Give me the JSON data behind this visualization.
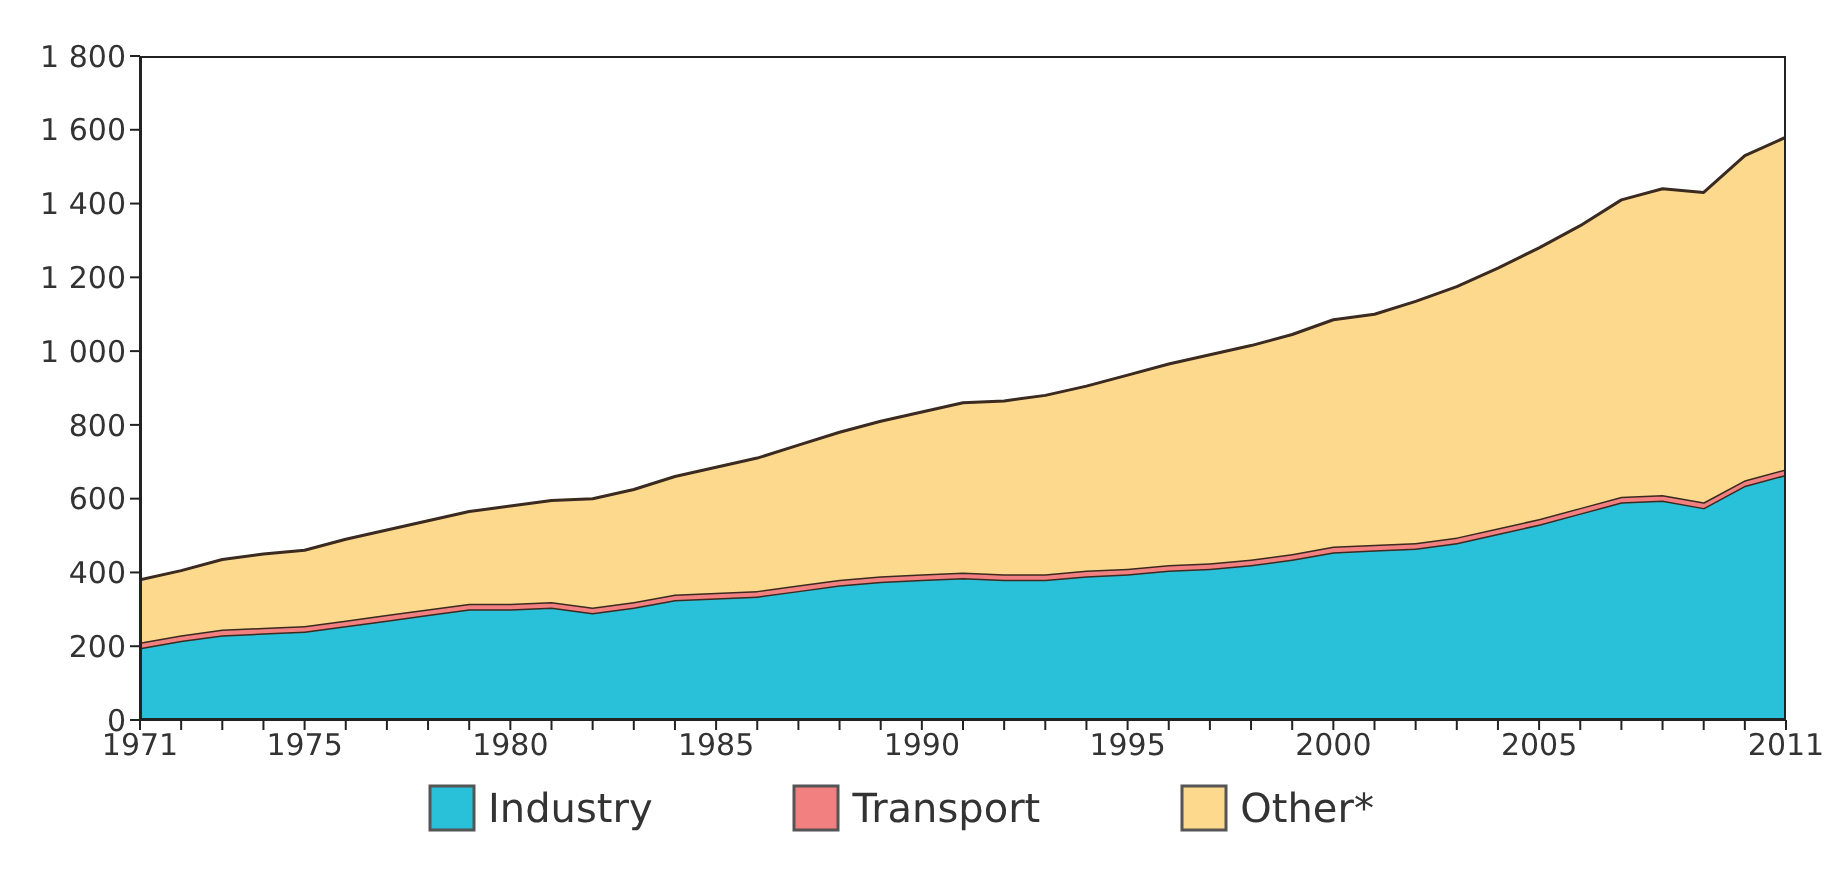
{
  "chart_data": {
    "type": "area",
    "stacked": true,
    "x": [
      1971,
      1972,
      1973,
      1974,
      1975,
      1976,
      1977,
      1978,
      1979,
      1980,
      1981,
      1982,
      1983,
      1984,
      1985,
      1986,
      1987,
      1988,
      1989,
      1990,
      1991,
      1992,
      1993,
      1994,
      1995,
      1996,
      1997,
      1998,
      1999,
      2000,
      2001,
      2002,
      2003,
      2004,
      2005,
      2006,
      2007,
      2008,
      2009,
      2010,
      2011
    ],
    "series": [
      {
        "name": "Industry",
        "color": "#29c0d9",
        "values": [
          195,
          215,
          230,
          235,
          240,
          255,
          270,
          285,
          300,
          300,
          305,
          290,
          305,
          325,
          330,
          335,
          350,
          365,
          375,
          380,
          385,
          380,
          380,
          390,
          395,
          405,
          410,
          420,
          435,
          455,
          460,
          465,
          480,
          505,
          530,
          560,
          590,
          595,
          575,
          635,
          665
        ]
      },
      {
        "name": "Transport",
        "color": "#f28080",
        "values": [
          15,
          15,
          15,
          15,
          15,
          15,
          15,
          15,
          15,
          15,
          15,
          15,
          15,
          15,
          15,
          15,
          15,
          15,
          15,
          15,
          15,
          15,
          15,
          15,
          15,
          15,
          15,
          15,
          15,
          15,
          15,
          15,
          15,
          15,
          15,
          15,
          15,
          15,
          15,
          15,
          15
        ]
      },
      {
        "name": "Other*",
        "color": "#fcd98d",
        "values": [
          170,
          175,
          190,
          200,
          205,
          220,
          230,
          240,
          250,
          265,
          275,
          295,
          305,
          320,
          340,
          360,
          380,
          400,
          420,
          440,
          460,
          470,
          485,
          500,
          525,
          545,
          565,
          580,
          595,
          615,
          625,
          655,
          680,
          705,
          735,
          765,
          805,
          830,
          840,
          880,
          900
        ]
      }
    ],
    "xlim": [
      1971,
      2011
    ],
    "xticks": [
      1971,
      {
        "value": 1972,
        "label": null
      },
      {
        "value": 1973,
        "label": null
      },
      {
        "value": 1974,
        "label": null
      },
      1975,
      {
        "value": 1976,
        "label": null
      },
      {
        "value": 1977,
        "label": null
      },
      {
        "value": 1978,
        "label": null
      },
      {
        "value": 1979,
        "label": null
      },
      1980,
      {
        "value": 1981,
        "label": null
      },
      {
        "value": 1982,
        "label": null
      },
      {
        "value": 1983,
        "label": null
      },
      {
        "value": 1984,
        "label": null
      },
      1985,
      {
        "value": 1986,
        "label": null
      },
      {
        "value": 1987,
        "label": null
      },
      {
        "value": 1988,
        "label": null
      },
      {
        "value": 1989,
        "label": null
      },
      1990,
      {
        "value": 1991,
        "label": null
      },
      {
        "value": 1992,
        "label": null
      },
      {
        "value": 1993,
        "label": null
      },
      {
        "value": 1994,
        "label": null
      },
      1995,
      {
        "value": 1996,
        "label": null
      },
      {
        "value": 1997,
        "label": null
      },
      {
        "value": 1998,
        "label": null
      },
      {
        "value": 1999,
        "label": null
      },
      2000,
      {
        "value": 2001,
        "label": null
      },
      {
        "value": 2002,
        "label": null
      },
      {
        "value": 2003,
        "label": null
      },
      {
        "value": 2004,
        "label": null
      },
      2005,
      {
        "value": 2006,
        "label": null
      },
      {
        "value": 2007,
        "label": null
      },
      {
        "value": 2008,
        "label": null
      },
      {
        "value": 2009,
        "label": null
      },
      {
        "value": 2010,
        "label": null
      },
      2011
    ],
    "ylim": [
      0,
      1800
    ],
    "yticks": [
      0,
      200,
      400,
      600,
      800,
      {
        "value": 1000,
        "label": "1 000"
      },
      {
        "value": 1200,
        "label": "1 200"
      },
      {
        "value": 1400,
        "label": "1 400"
      },
      {
        "value": 1600,
        "label": "1 600"
      },
      {
        "value": 1800,
        "label": "1 800"
      }
    ],
    "grid": false,
    "legend": "bottom"
  }
}
